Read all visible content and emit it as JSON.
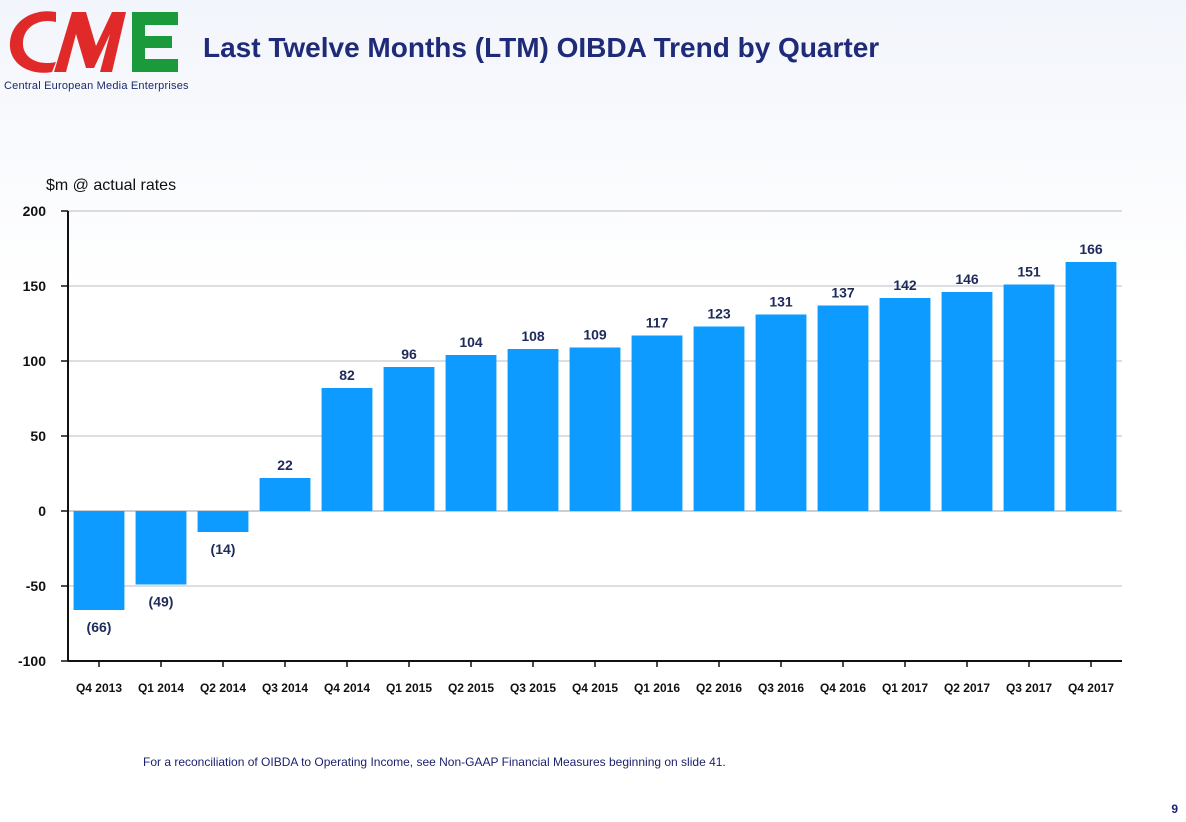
{
  "header": {
    "title": "Last Twelve Months (LTM) OIBDA Trend by Quarter",
    "logo_text": "CME",
    "logo_subtitle": "Central European Media Enterprises"
  },
  "footnote": "For a reconciliation of OIBDA to Operating Income, see Non-GAAP Financial Measures beginning on slide 41.",
  "page_number": "9",
  "colors": {
    "bar": "#0d9bff",
    "title": "#1f2a78",
    "logo_red": "#e02a2a",
    "logo_green": "#1a9a3a",
    "logo_blue": "#1a2a6c"
  },
  "chart_data": {
    "type": "bar",
    "title": "",
    "ylabel": "$m @ actual rates",
    "xlabel": "",
    "ylim": [
      -100,
      200
    ],
    "yticks": [
      200,
      150,
      100,
      50,
      0,
      -50,
      -100
    ],
    "grid": true,
    "categories": [
      "Q4 2013",
      "Q1 2014",
      "Q2 2014",
      "Q3 2014",
      "Q4 2014",
      "Q1 2015",
      "Q2 2015",
      "Q3 2015",
      "Q4 2015",
      "Q1 2016",
      "Q2 2016",
      "Q3 2016",
      "Q4 2016",
      "Q1 2017",
      "Q2 2017",
      "Q3 2017",
      "Q4 2017"
    ],
    "values": [
      -66,
      -49,
      -14,
      22,
      82,
      96,
      104,
      108,
      109,
      117,
      123,
      131,
      137,
      142,
      146,
      151,
      166
    ],
    "data_labels": [
      "(66)",
      "(49)",
      "(14)",
      "22",
      "82",
      "96",
      "104",
      "108",
      "109",
      "117",
      "123",
      "131",
      "137",
      "142",
      "146",
      "151",
      "166"
    ]
  }
}
